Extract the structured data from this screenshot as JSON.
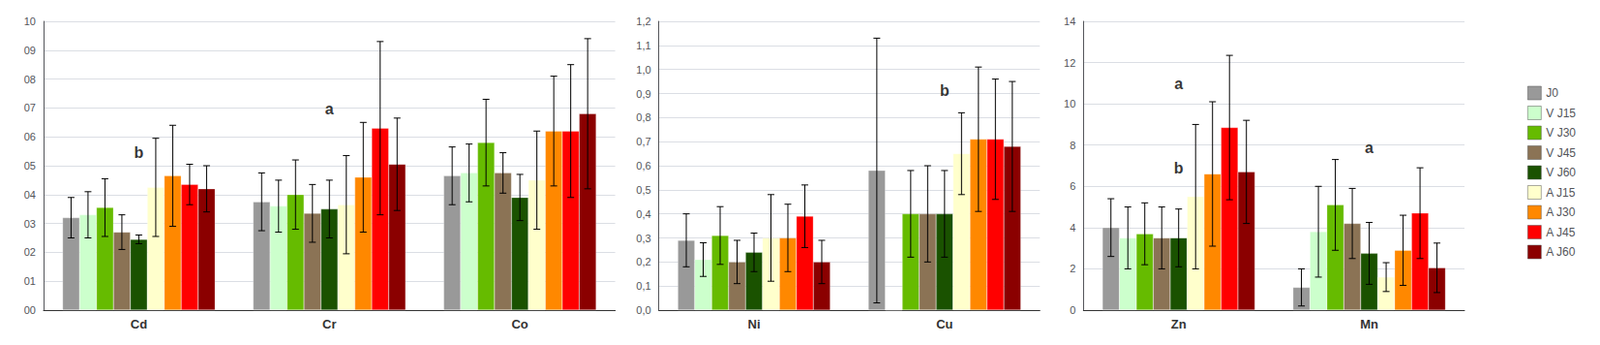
{
  "chart_data": [
    {
      "type": "bar",
      "grid": true,
      "categories": [
        "Cd",
        "Cr",
        "Co"
      ],
      "ylim": [
        0,
        1.0
      ],
      "yticks": [
        {
          "value": 0.0,
          "label": "00"
        },
        {
          "value": 0.1,
          "label": "01"
        },
        {
          "value": 0.2,
          "label": "02"
        },
        {
          "value": 0.3,
          "label": "03"
        },
        {
          "value": 0.4,
          "label": "04"
        },
        {
          "value": 0.5,
          "label": "05"
        },
        {
          "value": 0.6,
          "label": "06"
        },
        {
          "value": 0.7,
          "label": "07"
        },
        {
          "value": 0.8,
          "label": "08"
        },
        {
          "value": 0.9,
          "label": "09"
        },
        {
          "value": 1.0,
          "label": "10"
        }
      ],
      "series": [
        {
          "name": "J0",
          "color": "#999999",
          "values": [
            0.32,
            0.375,
            0.465
          ],
          "errors": [
            0.07,
            0.1,
            0.1
          ]
        },
        {
          "name": "V J15",
          "color": "#ccffcc",
          "values": [
            0.33,
            0.36,
            0.475
          ],
          "errors": [
            0.08,
            0.09,
            0.1
          ]
        },
        {
          "name": "V J30",
          "color": "#66bb00",
          "values": [
            0.355,
            0.4,
            0.58
          ],
          "errors": [
            0.1,
            0.12,
            0.15
          ]
        },
        {
          "name": "V J45",
          "color": "#8B7355",
          "values": [
            0.27,
            0.335,
            0.475
          ],
          "errors": [
            0.06,
            0.1,
            0.07
          ]
        },
        {
          "name": "V J60",
          "color": "#1a5200",
          "values": [
            0.245,
            0.35,
            0.39
          ],
          "errors": [
            0.015,
            0.1,
            0.08
          ]
        },
        {
          "name": "A J15",
          "color": "#ffffcc",
          "values": [
            0.425,
            0.365,
            0.45
          ],
          "errors": [
            0.17,
            0.17,
            0.17
          ]
        },
        {
          "name": "A J30",
          "color": "#ff8800",
          "values": [
            0.465,
            0.46,
            0.62
          ],
          "errors": [
            0.175,
            0.19,
            0.19
          ]
        },
        {
          "name": "A J45",
          "color": "#ff0000",
          "values": [
            0.435,
            0.63,
            0.62
          ],
          "errors": [
            0.07,
            0.3,
            0.23
          ]
        },
        {
          "name": "A J60",
          "color": "#8B0000",
          "values": [
            0.42,
            0.505,
            0.68
          ],
          "errors": [
            0.08,
            0.16,
            0.26
          ]
        }
      ],
      "annotations": [
        {
          "text": "a",
          "category": "Cr",
          "y": 0.67
        },
        {
          "text": "b",
          "category": "Cd",
          "y": 0.52
        }
      ]
    },
    {
      "type": "bar",
      "grid": true,
      "categories": [
        "Ni",
        "Cu"
      ],
      "ylim": [
        0.0,
        1.2
      ],
      "yticks": [
        {
          "value": 0.0,
          "label": "0,0"
        },
        {
          "value": 0.1,
          "label": "0,1"
        },
        {
          "value": 0.2,
          "label": "0,2"
        },
        {
          "value": 0.3,
          "label": "0,3"
        },
        {
          "value": 0.4,
          "label": "0,4"
        },
        {
          "value": 0.5,
          "label": "0,5"
        },
        {
          "value": 0.6,
          "label": "0,6"
        },
        {
          "value": 0.7,
          "label": "0,7"
        },
        {
          "value": 0.8,
          "label": "0,8"
        },
        {
          "value": 0.9,
          "label": "0,9"
        },
        {
          "value": 1.0,
          "label": "1,0"
        },
        {
          "value": 1.1,
          "label": "1,1"
        },
        {
          "value": 1.2,
          "label": "1,2"
        }
      ],
      "series": [
        {
          "name": "J0",
          "color": "#999999",
          "values": [
            0.29,
            0.58
          ],
          "errors": [
            0.11,
            0.55
          ]
        },
        {
          "name": "V J15",
          "color": "#ccffcc",
          "values": [
            0.21,
            0.0
          ],
          "errors": [
            0.07,
            0.0
          ]
        },
        {
          "name": "V J30",
          "color": "#66bb00",
          "values": [
            0.31,
            0.4
          ],
          "errors": [
            0.12,
            0.18
          ]
        },
        {
          "name": "V J45",
          "color": "#8B7355",
          "values": [
            0.2,
            0.4
          ],
          "errors": [
            0.09,
            0.2
          ]
        },
        {
          "name": "V J60",
          "color": "#1a5200",
          "values": [
            0.24,
            0.4
          ],
          "errors": [
            0.08,
            0.18
          ]
        },
        {
          "name": "A J15",
          "color": "#ffffcc",
          "values": [
            0.3,
            0.65
          ],
          "errors": [
            0.18,
            0.17
          ]
        },
        {
          "name": "A J30",
          "color": "#ff8800",
          "values": [
            0.3,
            0.71
          ],
          "errors": [
            0.14,
            0.3
          ]
        },
        {
          "name": "A J45",
          "color": "#ff0000",
          "values": [
            0.39,
            0.71
          ],
          "errors": [
            0.13,
            0.25
          ]
        },
        {
          "name": "A J60",
          "color": "#8B0000",
          "values": [
            0.2,
            0.68
          ],
          "errors": [
            0.09,
            0.27
          ]
        }
      ],
      "annotations": [
        {
          "text": "b",
          "category": "Cu",
          "y": 0.88
        }
      ]
    },
    {
      "type": "bar",
      "grid": true,
      "legend": "right",
      "categories": [
        "Zn",
        "Mn"
      ],
      "ylim": [
        0,
        14
      ],
      "yticks": [
        0,
        2,
        4,
        6,
        8,
        10,
        12,
        14
      ],
      "series": [
        {
          "name": "J0",
          "color": "#999999",
          "values": [
            4.0,
            1.1
          ],
          "errors": [
            1.4,
            0.9
          ]
        },
        {
          "name": "V J15",
          "color": "#ccffcc",
          "values": [
            3.5,
            3.8
          ],
          "errors": [
            1.5,
            2.2
          ]
        },
        {
          "name": "V J30",
          "color": "#66bb00",
          "values": [
            3.7,
            5.1
          ],
          "errors": [
            1.5,
            2.2
          ]
        },
        {
          "name": "V J45",
          "color": "#8B7355",
          "values": [
            3.5,
            4.2
          ],
          "errors": [
            1.5,
            1.7
          ]
        },
        {
          "name": "V J60",
          "color": "#1a5200",
          "values": [
            3.5,
            2.75
          ],
          "errors": [
            1.4,
            1.5
          ]
        },
        {
          "name": "A J15",
          "color": "#ffffcc",
          "values": [
            5.5,
            1.6
          ],
          "errors": [
            3.5,
            0.7
          ]
        },
        {
          "name": "A J30",
          "color": "#ff8800",
          "values": [
            6.6,
            2.9
          ],
          "errors": [
            3.5,
            1.7
          ]
        },
        {
          "name": "A J45",
          "color": "#ff0000",
          "values": [
            8.85,
            4.7
          ],
          "errors": [
            3.5,
            2.2
          ]
        },
        {
          "name": "A J60",
          "color": "#8B0000",
          "values": [
            6.7,
            2.05
          ],
          "errors": [
            2.5,
            1.2
          ]
        }
      ],
      "annotations": [
        {
          "text": "a",
          "category": "Zn",
          "y": 10.6
        },
        {
          "text": "b",
          "category": "Zn",
          "y": 6.5
        },
        {
          "text": "a",
          "category": "Mn",
          "y": 7.5
        }
      ]
    }
  ]
}
